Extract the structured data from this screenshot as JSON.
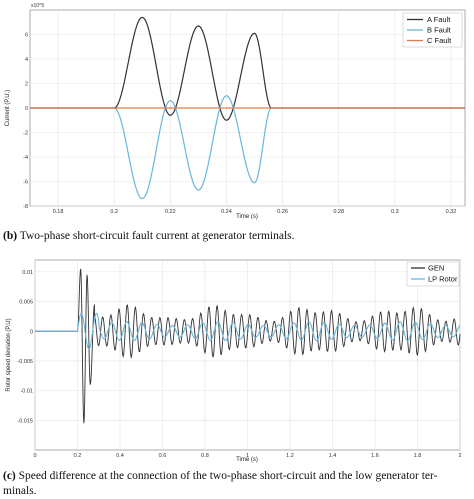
{
  "chart_data": [
    {
      "type": "line",
      "title": "",
      "xlabel": "Time (s)",
      "ylabel": "Current (P.U.)",
      "y_exponent": "x10^5",
      "xlim": [
        0.17,
        0.325
      ],
      "ylim": [
        -8,
        8
      ],
      "x_ticks": [
        "0.18",
        "0.2",
        "0.22",
        "0.24",
        "0.26",
        "0.28",
        "0.3",
        "0.32"
      ],
      "y_ticks": [
        "-8",
        "-6",
        "-4",
        "-2",
        "0",
        "2",
        "4",
        "6"
      ],
      "grid": true,
      "legend_position": "top-right",
      "series": [
        {
          "name": "A Fault",
          "color": "#333333",
          "x": [
            0.17,
            0.2,
            0.21,
            0.22,
            0.23,
            0.24,
            0.25,
            0.256,
            0.325
          ],
          "y": [
            0,
            0,
            7.4,
            -0.6,
            6.7,
            -1.0,
            6.1,
            0,
            0
          ]
        },
        {
          "name": "B Fault",
          "color": "#6ab6dd",
          "x": [
            0.17,
            0.2,
            0.21,
            0.22,
            0.23,
            0.24,
            0.25,
            0.256,
            0.325
          ],
          "y": [
            0,
            0,
            -7.4,
            0.6,
            -6.7,
            1.0,
            -6.1,
            0,
            0
          ]
        },
        {
          "name": "C Fault",
          "color": "#e07a4a",
          "x": [
            0.17,
            0.325
          ],
          "y": [
            0,
            0
          ]
        }
      ]
    },
    {
      "type": "line",
      "title": "",
      "xlabel": "Time (s)",
      "ylabel": "Rotor speed deviation (P.U)",
      "xlim": [
        0,
        2
      ],
      "ylim": [
        -0.02,
        0.012
      ],
      "x_ticks": [
        "0",
        "0.2",
        "0.4",
        "0.6",
        "0.8",
        "1",
        "1.2",
        "1.4",
        "1.6",
        "1.8",
        "2"
      ],
      "y_ticks": [
        "-0.015",
        "-0.01",
        "-0.005",
        "0",
        "0.005",
        "0.01"
      ],
      "grid": true,
      "legend_position": "top-right",
      "series": [
        {
          "name": "GEN",
          "color": "#333333",
          "x": [
            0,
            0.2,
            0.215,
            0.23,
            0.245,
            0.26,
            0.28,
            2.0
          ],
          "y": [
            0,
            0,
            0.0105,
            -0.0155,
            0.0095,
            -0.009,
            0.0045,
            0.003
          ],
          "note_oscillation_amplitude": 0.0045
        },
        {
          "name": "LP Rotor",
          "color": "#6ab6dd",
          "x": [
            0,
            0.2,
            0.25,
            2.0
          ],
          "y": [
            0,
            0,
            0.003,
            0.0015
          ]
        }
      ]
    }
  ],
  "captions": {
    "b_label": "(b)",
    "b_text": "Two-phase short-circuit fault current at generator terminals.",
    "c_label": "(c)",
    "c_text_line1": "Speed difference at the connection of the two-phase short-circuit and the low generator ter-",
    "c_text_line2": "minals."
  }
}
